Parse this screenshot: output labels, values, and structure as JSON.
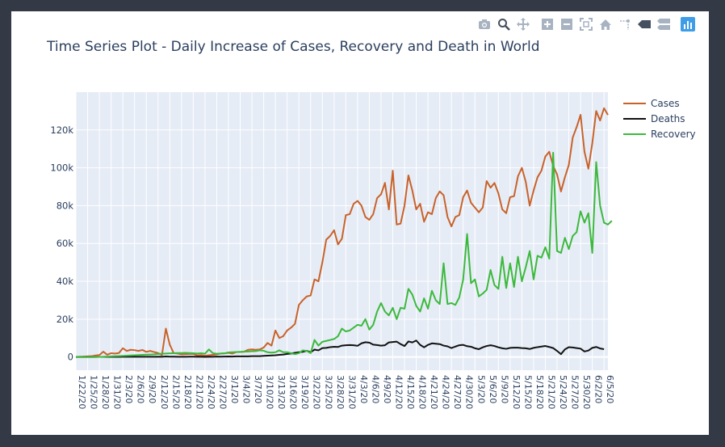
{
  "modebar": {
    "icons": [
      "camera-icon",
      "zoom-icon",
      "pan-icon",
      "zoom-in-icon",
      "zoom-out-icon",
      "autoscale-icon",
      "home-icon",
      "spike-lines-icon",
      "hover-closest-icon",
      "hover-compare-icon",
      "plotly-logo-icon"
    ]
  },
  "colors": {
    "cases": "#c9622a",
    "deaths": "#111111",
    "recovery": "#3cb93c",
    "plot_bg": "#e5ecf6",
    "grid": "#ffffff",
    "frame_bg": "#343a45"
  },
  "chart_data": {
    "type": "line",
    "title": "Time Series Plot - Daily Increase of Cases, Recovery and Death in World",
    "xlabel": "",
    "ylabel": "",
    "x_start": "2020-01-22",
    "x_end": "2020-06-06",
    "x_ticks": [
      "1/22/20",
      "1/25/20",
      "1/28/20",
      "1/31/20",
      "2/3/20",
      "2/6/20",
      "2/9/20",
      "2/12/20",
      "2/15/20",
      "2/18/20",
      "2/21/20",
      "2/24/20",
      "2/27/20",
      "3/1/20",
      "3/4/20",
      "3/7/20",
      "3/10/20",
      "3/13/20",
      "3/16/20",
      "3/19/20",
      "3/22/20",
      "3/25/20",
      "3/28/20",
      "3/31/20",
      "4/3/20",
      "4/6/20",
      "4/9/20",
      "4/12/20",
      "4/15/20",
      "4/18/20",
      "4/21/20",
      "4/24/20",
      "4/27/20",
      "4/30/20",
      "5/3/20",
      "5/6/20",
      "5/9/20",
      "5/12/20",
      "5/15/20",
      "5/18/20",
      "5/21/20",
      "5/24/20",
      "5/27/20",
      "5/30/20",
      "6/2/20",
      "6/5/20"
    ],
    "y_ticks": [
      0,
      20000,
      40000,
      60000,
      80000,
      100000,
      120000
    ],
    "y_tick_labels": [
      "0",
      "20k",
      "40k",
      "60k",
      "80k",
      "100k",
      "120k"
    ],
    "ylim": [
      -7000,
      140000
    ],
    "grid": true,
    "legend_position": "right",
    "series": [
      {
        "name": "Cases",
        "color": "#c9622a",
        "values": [
          0,
          100,
          200,
          300,
          400,
          800,
          1000,
          2800,
          1200,
          2000,
          1800,
          2100,
          4600,
          3200,
          3800,
          3600,
          3200,
          3700,
          2700,
          3200,
          2600,
          2100,
          1000,
          15000,
          6500,
          2000,
          1800,
          1400,
          1500,
          1600,
          1600,
          800,
          1000,
          600,
          900,
          1100,
          1400,
          1800,
          1900,
          2200,
          1800,
          2600,
          2600,
          2800,
          3800,
          4000,
          3800,
          4000,
          5000,
          7400,
          6000,
          14000,
          10000,
          11000,
          14000,
          15500,
          17500,
          27500,
          30000,
          32000,
          32500,
          41000,
          40000,
          50000,
          62000,
          64000,
          67000,
          59500,
          62500,
          75000,
          75500,
          81000,
          82500,
          80000,
          74000,
          72500,
          75500,
          84000,
          86000,
          92000,
          78000,
          98500,
          70000,
          70500,
          80000,
          96000,
          88000,
          78000,
          81000,
          71500,
          76500,
          75500,
          84000,
          87500,
          85500,
          74000,
          69000,
          74000,
          75000,
          84500,
          88000,
          81500,
          79000,
          76500,
          79000,
          93000,
          89500,
          92000,
          86500,
          78000,
          76000,
          84500,
          85000,
          95500,
          100000,
          92500,
          80000,
          88000,
          95000,
          98500,
          106000,
          108500,
          101000,
          96500,
          87500,
          95000,
          101500,
          116000,
          121500,
          128000,
          108500,
          99500,
          113000,
          130000,
          125000,
          131500,
          128000
        ]
      },
      {
        "name": "Deaths",
        "color": "#111111",
        "values": [
          0,
          0,
          10,
          10,
          10,
          20,
          30,
          40,
          50,
          60,
          60,
          70,
          90,
          90,
          100,
          90,
          90,
          100,
          100,
          110,
          120,
          130,
          90,
          260,
          140,
          140,
          120,
          110,
          100,
          130,
          130,
          100,
          100,
          70,
          90,
          100,
          200,
          150,
          200,
          250,
          200,
          300,
          300,
          300,
          300,
          400,
          400,
          400,
          600,
          700,
          800,
          900,
          1100,
          1300,
          1600,
          1800,
          2200,
          2500,
          2700,
          3300,
          2500,
          3900,
          3500,
          4700,
          4800,
          5200,
          5400,
          5300,
          6000,
          6200,
          6300,
          6200,
          5900,
          7200,
          7800,
          7600,
          6500,
          6300,
          6000,
          6200,
          7700,
          7900,
          8100,
          6800,
          5800,
          8200,
          7700,
          8700,
          6400,
          5100,
          6400,
          7200,
          7000,
          6800,
          6000,
          5600,
          4700,
          5500,
          6200,
          6400,
          5700,
          5400,
          4600,
          4100,
          5100,
          5800,
          6200,
          5800,
          5100,
          4600,
          4300,
          4800,
          4900,
          4900,
          4700,
          4600,
          4200,
          4800,
          5200,
          5500,
          5800,
          5300,
          4700,
          3200,
          1500,
          4000,
          5200,
          5000,
          4700,
          4400,
          2900,
          3400,
          4800,
          5300,
          4500,
          4100
        ]
      },
      {
        "name": "Recovery",
        "color": "#3cb93c",
        "values": [
          0,
          0,
          0,
          0,
          10,
          30,
          50,
          100,
          200,
          300,
          400,
          500,
          600,
          700,
          800,
          900,
          1000,
          1100,
          1200,
          1300,
          1400,
          1600,
          1700,
          1800,
          1900,
          2000,
          2100,
          2100,
          2200,
          2100,
          2000,
          1800,
          2000,
          1700,
          4000,
          2000,
          1700,
          1800,
          1900,
          2400,
          2500,
          2600,
          2700,
          2800,
          2900,
          3000,
          3100,
          3500,
          3300,
          2500,
          2300,
          2500,
          3500,
          2500,
          2500,
          2000,
          1500,
          2000,
          3500,
          3200,
          2000,
          9000,
          6000,
          8000,
          8500,
          9000,
          9500,
          11000,
          15000,
          13500,
          14000,
          15500,
          17000,
          16500,
          20000,
          14500,
          17000,
          24000,
          28500,
          24000,
          22000,
          26000,
          20000,
          26000,
          25500,
          36000,
          33000,
          27000,
          24000,
          31000,
          25500,
          35000,
          30000,
          28000,
          49500,
          28000,
          28500,
          27500,
          31500,
          41000,
          65000,
          39000,
          41000,
          32000,
          33500,
          35500,
          46000,
          38000,
          36000,
          53000,
          36500,
          49500,
          37000,
          53000,
          40000,
          47500,
          56000,
          41000,
          53500,
          52500,
          58000,
          52000,
          108000,
          56000,
          55000,
          63000,
          57000,
          64000,
          66000,
          77000,
          71000,
          76000,
          55000,
          103000,
          80000,
          71000,
          70000,
          72000
        ]
      }
    ]
  }
}
